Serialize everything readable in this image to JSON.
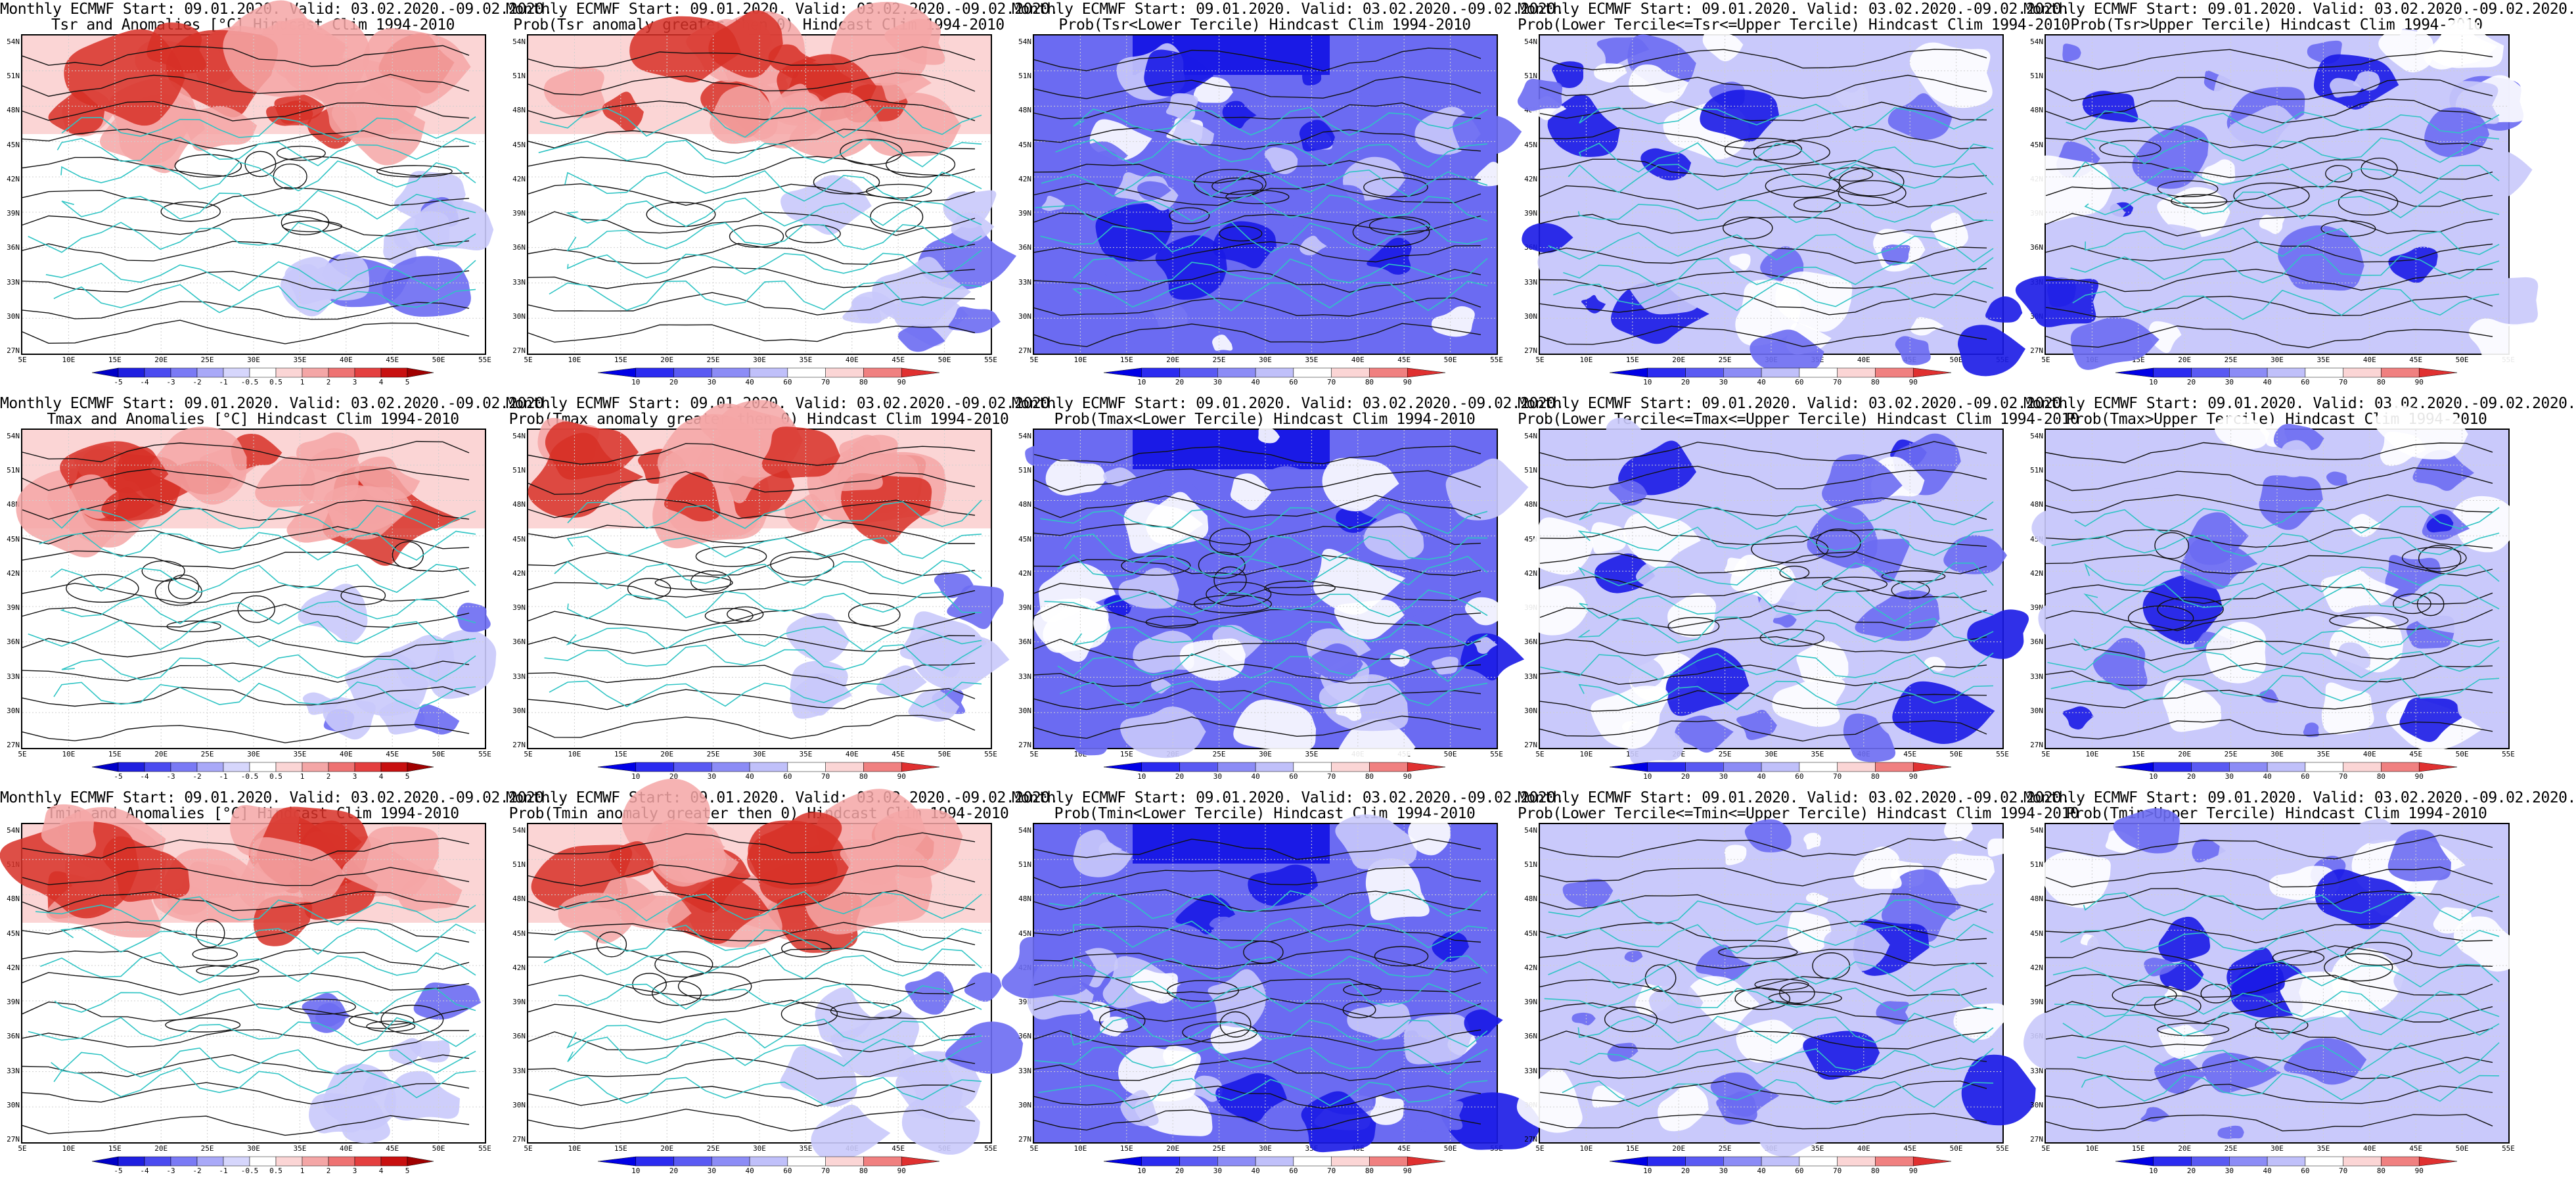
{
  "colors": {
    "warm_dark": "#d73027",
    "warm_mid": "#f4a6a6",
    "warm_light": "#fbd5d5",
    "cool_dark": "#1a1ae6",
    "cool_mid": "#6b6bf2",
    "cool_light": "#c9c9fb",
    "coast": "#2fc4c4",
    "contour": "#111111"
  },
  "axes": {
    "lat_labels": [
      "54N",
      "51N",
      "48N",
      "45N",
      "42N",
      "39N",
      "36N",
      "33N",
      "30N",
      "27N"
    ],
    "lon_labels": [
      "5E",
      "10E",
      "15E",
      "20E",
      "25E",
      "30E",
      "35E",
      "40E",
      "45E",
      "50E",
      "55E"
    ]
  },
  "colorbars": {
    "anomaly": [
      "-5",
      "-4",
      "-3",
      "-2",
      "-1",
      "-0.5",
      "0.5",
      "1",
      "2",
      "3",
      "4",
      "5"
    ],
    "probability": [
      "10",
      "20",
      "30",
      "40",
      "60",
      "70",
      "80",
      "90"
    ]
  },
  "panels": [
    {
      "title1": "Monthly ECMWF Start: 09.01.2020. Valid: 03.02.2020.-09.02.2020.",
      "title2": "Tsr and Anomalies [°C] Hindcast Clim 1994-2010",
      "style": "warm",
      "colorbar": "anomaly"
    },
    {
      "title1": "Monthly ECMWF Start: 09.01.2020. Valid: 03.02.2020.-09.02.2020.",
      "title2": "Prob(Tsr anomaly greater then 0) Hindcast Clim 1994-2010",
      "style": "warm",
      "colorbar": "probability"
    },
    {
      "title1": "Monthly ECMWF Start: 09.01.2020. Valid: 03.02.2020.-09.02.2020.",
      "title2": "Prob(Tsr<Lower Tercile) Hindcast Clim 1994-2010",
      "style": "cool_dark",
      "colorbar": "probability"
    },
    {
      "title1": "Monthly ECMWF Start: 09.01.2020. Valid: 03.02.2020.-09.02.2020.",
      "title2": "Prob(Lower Tercile<=Tsr<=Upper Tercile) Hindcast Clim 1994-2010",
      "style": "cool_mid",
      "colorbar": "probability"
    },
    {
      "title1": "Monthly ECMWF Start: 09.01.2020. Valid: 03.02.2020.-09.02.2020.",
      "title2": "Prob(Tsr>Upper Tercile) Hindcast Clim 1994-2010",
      "style": "cool_light",
      "colorbar": "probability"
    },
    {
      "title1": "Monthly ECMWF Start: 09.01.2020. Valid: 03.02.2020.-09.02.2020.",
      "title2": "Tmax and Anomalies [°C] Hindcast Clim 1994-2010",
      "style": "warm",
      "colorbar": "anomaly"
    },
    {
      "title1": "Monthly ECMWF Start: 09.01.2020. Valid: 03.02.2020.-09.02.2020.",
      "title2": "Prob(Tmax anomaly greater then 0) Hindcast Clim 1994-2010",
      "style": "warm",
      "colorbar": "probability"
    },
    {
      "title1": "Monthly ECMWF Start: 09.01.2020. Valid: 03.02.2020.-09.02.2020.",
      "title2": "Prob(Tmax<Lower Tercile) Hindcast Clim 1994-2010",
      "style": "cool_dark",
      "colorbar": "probability"
    },
    {
      "title1": "Monthly ECMWF Start: 09.01.2020. Valid: 03.02.2020.-09.02.2020.",
      "title2": "Prob(Lower Tercile<=Tmax<=Upper Tercile) Hindcast Clim 1994-2010",
      "style": "cool_mid",
      "colorbar": "probability"
    },
    {
      "title1": "Monthly ECMWF Start: 09.01.2020. Valid: 03.02.2020.-09.02.2020.",
      "title2": "Prob(Tmax>Upper Tercile) Hindcast Clim 1994-2010",
      "style": "cool_light",
      "colorbar": "probability"
    },
    {
      "title1": "Monthly ECMWF Start: 09.01.2020. Valid: 03.02.2020.-09.02.2020.",
      "title2": "Tmin and Anomalies [°C] Hindcast Clim 1994-2010",
      "style": "warm",
      "colorbar": "anomaly"
    },
    {
      "title1": "Monthly ECMWF Start: 09.01.2020. Valid: 03.02.2020.-09.02.2020.",
      "title2": "Prob(Tmin anomaly greater then 0) Hindcast Clim 1994-2010",
      "style": "warm",
      "colorbar": "probability"
    },
    {
      "title1": "Monthly ECMWF Start: 09.01.2020. Valid: 03.02.2020.-09.02.2020.",
      "title2": "Prob(Tmin<Lower Tercile) Hindcast Clim 1994-2010",
      "style": "cool_dark",
      "colorbar": "probability"
    },
    {
      "title1": "Monthly ECMWF Start: 09.01.2020. Valid: 03.02.2020.-09.02.2020.",
      "title2": "Prob(Lower Tercile<=Tmin<=Upper Tercile) Hindcast Clim 1994-2010",
      "style": "cool_mid",
      "colorbar": "probability"
    },
    {
      "title1": "Monthly ECMWF Start: 09.01.2020. Valid: 03.02.2020.-09.02.2020.",
      "title2": "Prob(Tmin>Upper Tercile) Hindcast Clim 1994-2010",
      "style": "cool_light",
      "colorbar": "probability"
    }
  ]
}
